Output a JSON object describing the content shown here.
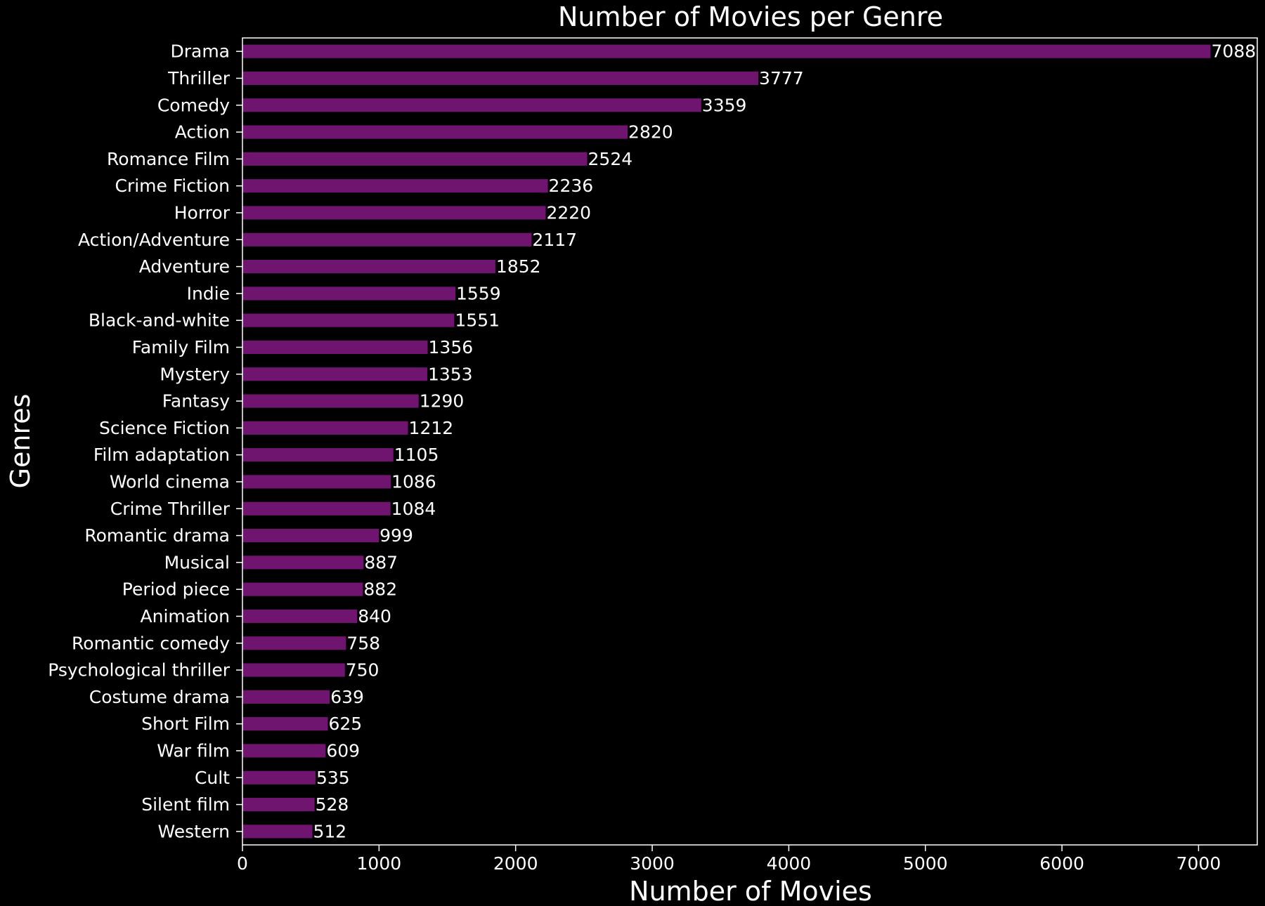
{
  "chart_data": {
    "type": "bar",
    "orientation": "horizontal",
    "title": "Number of Movies per Genre",
    "xlabel": "Number of Movies",
    "ylabel": "Genres",
    "xlim": [
      0,
      7430
    ],
    "xticks": [
      0,
      1000,
      2000,
      3000,
      4000,
      5000,
      6000,
      7000
    ],
    "grid": false,
    "legend": "none",
    "bar_color": "#6f146f",
    "background_color": "#000000",
    "text_color": "#ffffff",
    "categories": [
      "Drama",
      "Thriller",
      "Comedy",
      "Action",
      "Romance Film",
      "Crime Fiction",
      "Horror",
      "Action/Adventure",
      "Adventure",
      "Indie",
      "Black-and-white",
      "Family Film",
      "Mystery",
      "Fantasy",
      "Science Fiction",
      "Film adaptation",
      "World cinema",
      "Crime Thriller",
      "Romantic drama",
      "Musical",
      "Period piece",
      "Animation",
      "Romantic comedy",
      "Psychological thriller",
      "Costume drama",
      "Short Film",
      "War film",
      "Cult",
      "Silent film",
      "Western"
    ],
    "values": [
      7088,
      3777,
      3359,
      2820,
      2524,
      2236,
      2220,
      2117,
      1852,
      1559,
      1551,
      1356,
      1353,
      1290,
      1212,
      1105,
      1086,
      1084,
      999,
      887,
      882,
      840,
      758,
      750,
      639,
      625,
      609,
      535,
      528,
      512
    ]
  }
}
